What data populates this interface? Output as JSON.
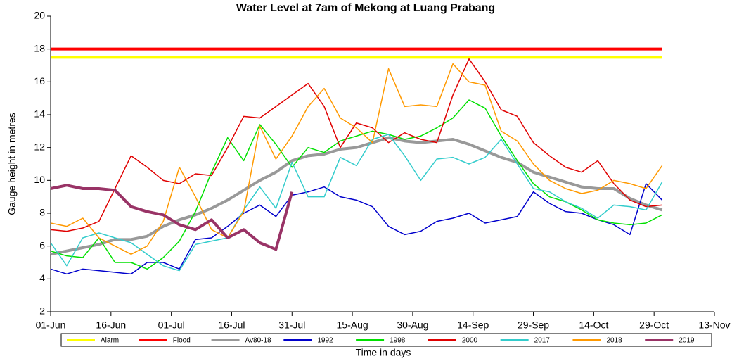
{
  "chart_data": {
    "type": "line",
    "title": "Water Level at 7am of Mekong at Luang Prabang",
    "xlabel": "Time in days",
    "ylabel": "Gauge height in metres",
    "x": [
      0,
      4,
      8,
      12,
      16,
      20,
      24,
      28,
      32,
      36,
      40,
      44,
      48,
      52,
      56,
      60,
      64,
      68,
      72,
      76,
      80,
      84,
      88,
      92,
      96,
      100,
      104,
      108,
      112,
      116,
      120,
      124,
      128,
      132,
      136,
      140,
      144,
      148,
      152
    ],
    "xlim": [
      0,
      165
    ],
    "xticks": [
      {
        "value": 0,
        "label": "01-Jun"
      },
      {
        "value": 15,
        "label": "16-Jun"
      },
      {
        "value": 30,
        "label": "01-Jul"
      },
      {
        "value": 45,
        "label": "16-Jul"
      },
      {
        "value": 60,
        "label": "31-Jul"
      },
      {
        "value": 75,
        "label": "15-Aug"
      },
      {
        "value": 90,
        "label": "30-Aug"
      },
      {
        "value": 105,
        "label": "14-Sep"
      },
      {
        "value": 120,
        "label": "29-Sep"
      },
      {
        "value": 135,
        "label": "14-Oct"
      },
      {
        "value": 150,
        "label": "29-Oct"
      },
      {
        "value": 165,
        "label": "13-Nov"
      }
    ],
    "ylim": [
      2,
      20
    ],
    "yticks": [
      2,
      4,
      6,
      8,
      10,
      12,
      14,
      16,
      18,
      20
    ],
    "grid": false,
    "legend": "bottom",
    "series": [
      {
        "name": "Alarm",
        "color": "#ffff00",
        "width": 4,
        "values": [
          17.5,
          17.5,
          17.5,
          17.5,
          17.5,
          17.5,
          17.5,
          17.5,
          17.5,
          17.5,
          17.5,
          17.5,
          17.5,
          17.5,
          17.5,
          17.5,
          17.5,
          17.5,
          17.5,
          17.5,
          17.5,
          17.5,
          17.5,
          17.5,
          17.5,
          17.5,
          17.5,
          17.5,
          17.5,
          17.5,
          17.5,
          17.5,
          17.5,
          17.5,
          17.5,
          17.5,
          17.5,
          17.5,
          17.5
        ]
      },
      {
        "name": "Flood",
        "color": "#ff0000",
        "width": 4,
        "values": [
          18,
          18,
          18,
          18,
          18,
          18,
          18,
          18,
          18,
          18,
          18,
          18,
          18,
          18,
          18,
          18,
          18,
          18,
          18,
          18,
          18,
          18,
          18,
          18,
          18,
          18,
          18,
          18,
          18,
          18,
          18,
          18,
          18,
          18,
          18,
          18,
          18,
          18,
          18
        ]
      },
      {
        "name": "Av80-18",
        "color": "#999999",
        "width": 4,
        "values": [
          5.5,
          5.7,
          5.9,
          6.1,
          6.4,
          6.4,
          6.6,
          7.2,
          7.6,
          7.9,
          8.3,
          8.8,
          9.4,
          10.0,
          10.5,
          11.2,
          11.5,
          11.6,
          11.9,
          12.0,
          12.3,
          12.6,
          12.4,
          12.3,
          12.4,
          12.5,
          12.2,
          11.8,
          11.4,
          11.1,
          10.5,
          10.2,
          9.9,
          9.6,
          9.5,
          9.5,
          8.9,
          8.5,
          8.2
        ]
      },
      {
        "name": "1992",
        "color": "#0000cc",
        "width": 1.5,
        "values": [
          4.6,
          4.3,
          4.6,
          4.5,
          4.4,
          4.3,
          5.0,
          5.0,
          4.6,
          6.4,
          6.5,
          7.2,
          8.0,
          8.5,
          7.8,
          9.1,
          9.3,
          9.6,
          9.0,
          8.8,
          8.4,
          7.2,
          6.7,
          6.9,
          7.5,
          7.7,
          8.0,
          7.4,
          7.6,
          7.8,
          9.3,
          8.6,
          8.1,
          8.0,
          7.6,
          7.3,
          6.7,
          9.8,
          8.8
        ]
      },
      {
        "name": "1998",
        "color": "#00e000",
        "width": 1.5,
        "values": [
          5.7,
          5.4,
          5.3,
          6.5,
          5.0,
          5.0,
          4.6,
          5.3,
          6.3,
          8.1,
          10.5,
          12.6,
          11.2,
          13.4,
          12.2,
          10.8,
          12.0,
          11.7,
          12.4,
          12.7,
          13.0,
          12.8,
          12.5,
          12.7,
          13.2,
          13.8,
          14.9,
          14.4,
          12.7,
          11.2,
          9.8,
          9.0,
          8.7,
          8.2,
          7.6,
          7.4,
          7.3,
          7.4,
          7.9
        ]
      },
      {
        "name": "2000",
        "color": "#e00000",
        "width": 1.5,
        "values": [
          7.0,
          6.9,
          7.1,
          7.5,
          9.5,
          11.5,
          10.8,
          10.0,
          9.8,
          10.4,
          10.3,
          12.0,
          13.9,
          13.8,
          14.5,
          15.2,
          15.9,
          14.5,
          12.0,
          13.5,
          13.2,
          12.3,
          12.9,
          12.5,
          12.3,
          15.2,
          17.4,
          16.0,
          14.3,
          13.9,
          12.3,
          11.5,
          10.8,
          10.5,
          11.2,
          9.8,
          8.8,
          8.4,
          8.5
        ]
      },
      {
        "name": "2017",
        "color": "#33cccc",
        "width": 1.5,
        "values": [
          6.2,
          4.8,
          6.5,
          6.8,
          6.5,
          6.2,
          5.5,
          4.8,
          4.5,
          6.1,
          6.3,
          6.5,
          8.2,
          9.6,
          8.3,
          11.1,
          9.0,
          9.0,
          11.4,
          10.9,
          12.5,
          12.8,
          11.5,
          10.0,
          11.3,
          11.4,
          11.0,
          11.4,
          12.5,
          11.0,
          9.5,
          9.3,
          8.7,
          8.3,
          7.7,
          8.5,
          8.4,
          8.2,
          9.9
        ]
      },
      {
        "name": "2018",
        "color": "#ff9900",
        "width": 1.5,
        "values": [
          7.4,
          7.2,
          7.7,
          6.5,
          6.0,
          5.5,
          6.0,
          7.5,
          10.8,
          9.0,
          7.0,
          6.5,
          8.1,
          13.3,
          11.3,
          12.7,
          14.5,
          15.6,
          13.8,
          13.2,
          12.3,
          16.8,
          14.5,
          14.6,
          14.5,
          17.1,
          16.0,
          15.8,
          13.0,
          12.4,
          11.0,
          10.0,
          9.5,
          9.2,
          9.4,
          10.0,
          9.8,
          9.5,
          10.9
        ]
      },
      {
        "name": "2019",
        "color": "#993366",
        "width": 4,
        "values": [
          9.5,
          9.7,
          9.5,
          9.5,
          9.4,
          8.4,
          8.1,
          7.9,
          7.3,
          7.0,
          7.6,
          6.5,
          7.0,
          6.2,
          5.8,
          9.3,
          null,
          null,
          null,
          null,
          null,
          null,
          null,
          null,
          null,
          null,
          null,
          null,
          null,
          null,
          null,
          null,
          null,
          null,
          null,
          null,
          null,
          null,
          null
        ]
      }
    ]
  }
}
